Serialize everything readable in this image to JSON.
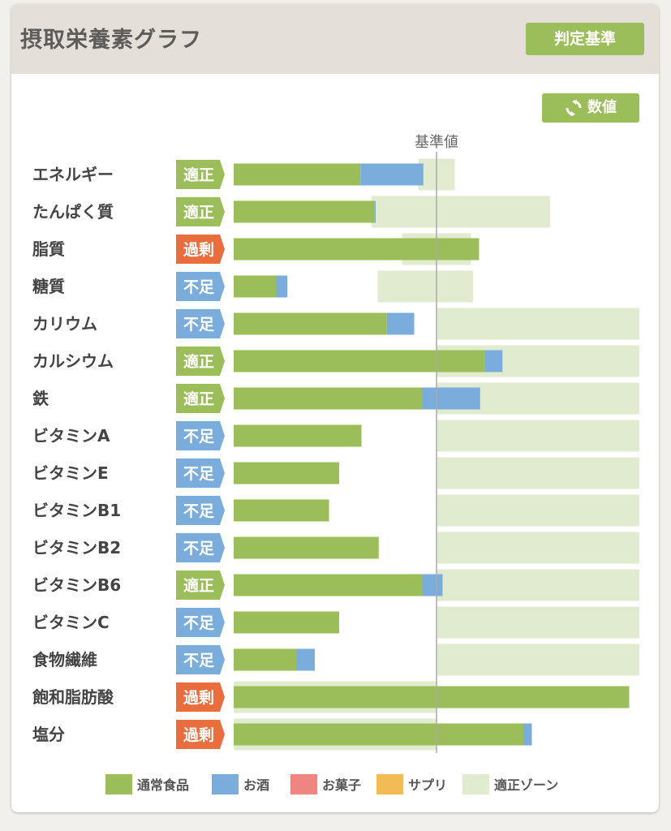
{
  "header": {
    "title": "摂取栄養素グラフ",
    "criteria_button": "判定基準"
  },
  "values_button": {
    "label": "数値",
    "icon": "refresh-icon"
  },
  "reference_label": "基準値",
  "colors": {
    "normal_food": "#9bbd5a",
    "alcohol": "#7aaddb",
    "sweets": "#ee8581",
    "supplement": "#f3bb55",
    "appropriate_zone": "#e1ebcf",
    "status_appropriate": "#9bbd5a",
    "status_deficient": "#7aaddb",
    "status_excess": "#e96d3d"
  },
  "legend": [
    {
      "key": "normal_food",
      "label": "通常食品"
    },
    {
      "key": "alcohol",
      "label": "お酒"
    },
    {
      "key": "sweets",
      "label": "お菓子"
    },
    {
      "key": "supplement",
      "label": "サプリ"
    },
    {
      "key": "appropriate_zone",
      "label": "適正ゾーン"
    }
  ],
  "chart_data": {
    "type": "bar",
    "orientation": "horizontal",
    "stacked": true,
    "reference_value": 100,
    "xlim": [
      0,
      200
    ],
    "unit": "percent of reference value (estimated, no axis printed)",
    "categories": [
      "エネルギー",
      "たんぱく質",
      "脂質",
      "糖質",
      "カリウム",
      "カルシウム",
      "鉄",
      "ビタミンA",
      "ビタミンE",
      "ビタミンB1",
      "ビタミンB2",
      "ビタミンB6",
      "ビタミンC",
      "食物繊維",
      "飽和脂肪酸",
      "塩分"
    ],
    "status": [
      "適正",
      "適正",
      "過剰",
      "不足",
      "不足",
      "適正",
      "適正",
      "不足",
      "不足",
      "不足",
      "不足",
      "適正",
      "不足",
      "不足",
      "過剰",
      "過剰"
    ],
    "series": [
      {
        "name": "通常食品",
        "key": "normal_food",
        "values": [
          62.5,
          69.5,
          121,
          21,
          75.5,
          124,
          93,
          63,
          52,
          47,
          71.5,
          93,
          52,
          31,
          195,
          143
        ]
      },
      {
        "name": "お酒",
        "key": "alcohol",
        "values": [
          31,
          0.5,
          0,
          5.5,
          13.5,
          8.5,
          28.5,
          0,
          0,
          0,
          0,
          10,
          0,
          9,
          0,
          4
        ]
      },
      {
        "name": "お菓子",
        "key": "sweets",
        "values": [
          0,
          0,
          0,
          0,
          0,
          0,
          0,
          0,
          0,
          0,
          0,
          0,
          0,
          0,
          0,
          0
        ]
      },
      {
        "name": "サプリ",
        "key": "supplement",
        "values": [
          0,
          0,
          0,
          0,
          0,
          0,
          0,
          0,
          0,
          0,
          0,
          0,
          0,
          0,
          0,
          0
        ]
      }
    ],
    "appropriate_zone": [
      [
        91,
        109
      ],
      [
        68,
        156
      ],
      [
        83,
        117
      ],
      [
        71,
        118
      ],
      [
        100,
        200
      ],
      [
        100,
        200
      ],
      [
        100,
        200
      ],
      [
        100,
        200
      ],
      [
        100,
        200
      ],
      [
        100,
        200
      ],
      [
        100,
        200
      ],
      [
        100,
        200
      ],
      [
        100,
        200
      ],
      [
        100,
        200
      ],
      [
        0,
        100
      ],
      [
        0,
        100
      ]
    ]
  }
}
